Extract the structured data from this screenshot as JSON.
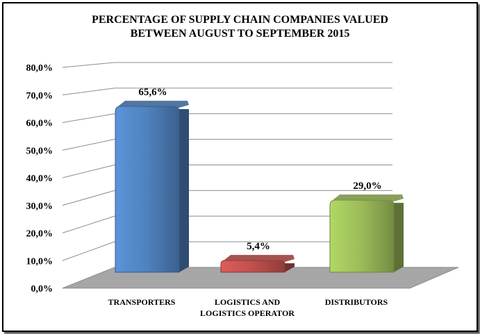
{
  "chart_data": {
    "type": "bar",
    "title_lines": [
      "PERCENTAGE OF SUPPLY CHAIN COMPANIES VALUED",
      "BETWEEN AUGUST TO SEPTEMBER 2015"
    ],
    "categories": [
      [
        "TRANSPORTERS"
      ],
      [
        "LOGISTICS  AND",
        "LOGISTICS  OPERATOR"
      ],
      [
        "DISTRIBUTORS"
      ]
    ],
    "values": [
      65.6,
      5.4,
      29.0
    ],
    "data_labels": [
      "65,6%",
      "5,4%",
      "29,0%"
    ],
    "bar_colors": [
      "#4f81bd",
      "#c0504d",
      "#9bbb59"
    ],
    "ylim": [
      0,
      80
    ],
    "yticks": [
      0,
      10,
      20,
      30,
      40,
      50,
      60,
      70,
      80
    ],
    "ytick_labels": [
      "0,0%",
      "10,0%",
      "20,0%",
      "30,0%",
      "40,0%",
      "50,0%",
      "60,0%",
      "70,0%",
      "80,0%"
    ],
    "grid": true,
    "three_d": true,
    "legend": "none",
    "floor_color": "#a6a6a6"
  }
}
